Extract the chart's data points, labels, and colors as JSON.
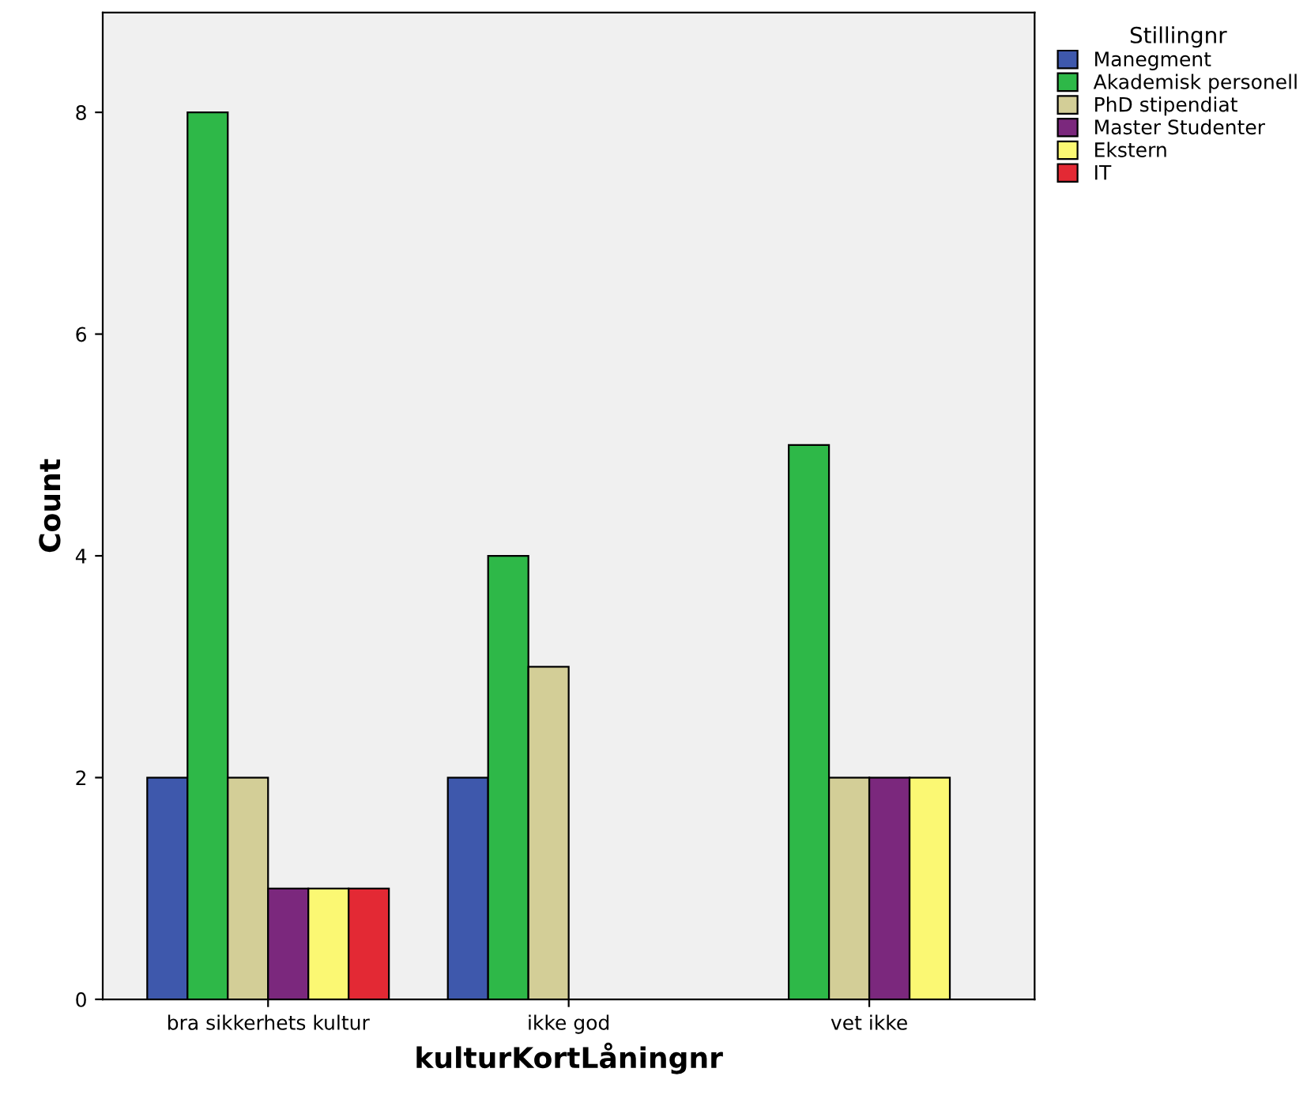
{
  "chart_data": {
    "type": "bar",
    "xlabel": "kulturKortLåningnr",
    "ylabel": "Count",
    "legend_title": "Stillingnr",
    "legend": "right",
    "grid": false,
    "categories": [
      "bra sikkerhets kultur",
      "ikke god",
      "vet ikke"
    ],
    "ylim": [
      0,
      8.9
    ],
    "yticks": [
      0,
      2,
      4,
      6,
      8
    ],
    "series": [
      {
        "name": "Manegment",
        "color": "#3e58ac",
        "values": [
          2,
          2,
          null
        ]
      },
      {
        "name": "Akademisk personell",
        "color": "#2eb848",
        "values": [
          8,
          4,
          5
        ]
      },
      {
        "name": "PhD stipendiat",
        "color": "#d3ce97",
        "values": [
          2,
          3,
          2
        ]
      },
      {
        "name": "Master Studenter",
        "color": "#7b287d",
        "values": [
          1,
          null,
          2
        ]
      },
      {
        "name": "Ekstern",
        "color": "#fbf873",
        "values": [
          1,
          null,
          2
        ]
      },
      {
        "name": "IT",
        "color": "#e32934",
        "values": [
          1,
          null,
          null
        ]
      }
    ]
  }
}
